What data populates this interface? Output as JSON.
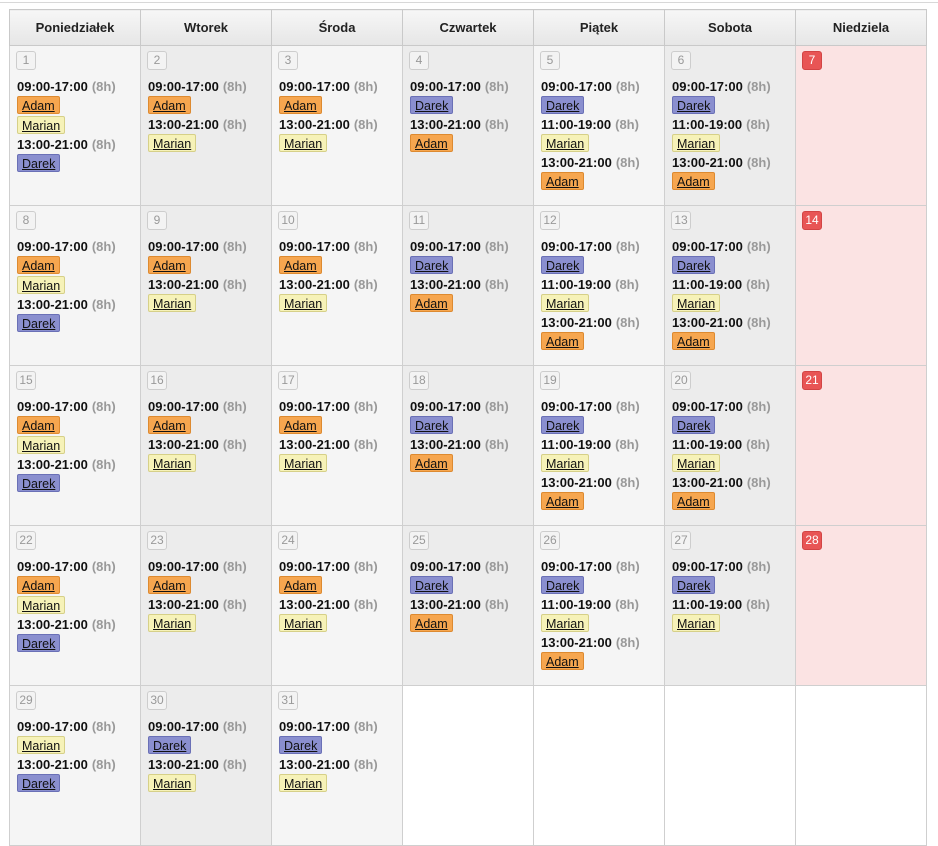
{
  "weekdays": [
    "Poniedziałek",
    "Wtorek",
    "Środa",
    "Czwartek",
    "Piątek",
    "Sobota",
    "Niedziela"
  ],
  "people": {
    "adam": "Adam",
    "marian": "Marian",
    "darek": "Darek"
  },
  "colors": {
    "adam": "#f6a64f",
    "marian": "#f6f2b8",
    "darek": "#8a8fcf",
    "sunday": "#e85555"
  },
  "weeks": [
    [
      {
        "day": "1",
        "shifts": [
          {
            "time": "09:00-17:00",
            "dur": "(8h)",
            "people": [
              "adam",
              "marian"
            ]
          },
          {
            "time": "13:00-21:00",
            "dur": "(8h)",
            "people": [
              "darek"
            ]
          }
        ]
      },
      {
        "day": "2",
        "shifts": [
          {
            "time": "09:00-17:00",
            "dur": "(8h)",
            "people": [
              "adam"
            ]
          },
          {
            "time": "13:00-21:00",
            "dur": "(8h)",
            "people": [
              "marian"
            ]
          }
        ]
      },
      {
        "day": "3",
        "shifts": [
          {
            "time": "09:00-17:00",
            "dur": "(8h)",
            "people": [
              "adam"
            ]
          },
          {
            "time": "13:00-21:00",
            "dur": "(8h)",
            "people": [
              "marian"
            ]
          }
        ]
      },
      {
        "day": "4",
        "shifts": [
          {
            "time": "09:00-17:00",
            "dur": "(8h)",
            "people": [
              "darek"
            ]
          },
          {
            "time": "13:00-21:00",
            "dur": "(8h)",
            "people": [
              "adam"
            ]
          }
        ]
      },
      {
        "day": "5",
        "shifts": [
          {
            "time": "09:00-17:00",
            "dur": "(8h)",
            "people": [
              "darek"
            ]
          },
          {
            "time": "11:00-19:00",
            "dur": "(8h)",
            "people": [
              "marian"
            ]
          },
          {
            "time": "13:00-21:00",
            "dur": "(8h)",
            "people": [
              "adam"
            ]
          }
        ]
      },
      {
        "day": "6",
        "shifts": [
          {
            "time": "09:00-17:00",
            "dur": "(8h)",
            "people": [
              "darek"
            ]
          },
          {
            "time": "11:00-19:00",
            "dur": "(8h)",
            "people": [
              "marian"
            ]
          },
          {
            "time": "13:00-21:00",
            "dur": "(8h)",
            "people": [
              "adam"
            ]
          }
        ]
      },
      {
        "day": "7",
        "shifts": []
      }
    ],
    [
      {
        "day": "8",
        "shifts": [
          {
            "time": "09:00-17:00",
            "dur": "(8h)",
            "people": [
              "adam",
              "marian"
            ]
          },
          {
            "time": "13:00-21:00",
            "dur": "(8h)",
            "people": [
              "darek"
            ]
          }
        ]
      },
      {
        "day": "9",
        "shifts": [
          {
            "time": "09:00-17:00",
            "dur": "(8h)",
            "people": [
              "adam"
            ]
          },
          {
            "time": "13:00-21:00",
            "dur": "(8h)",
            "people": [
              "marian"
            ]
          }
        ]
      },
      {
        "day": "10",
        "shifts": [
          {
            "time": "09:00-17:00",
            "dur": "(8h)",
            "people": [
              "adam"
            ]
          },
          {
            "time": "13:00-21:00",
            "dur": "(8h)",
            "people": [
              "marian"
            ]
          }
        ]
      },
      {
        "day": "11",
        "shifts": [
          {
            "time": "09:00-17:00",
            "dur": "(8h)",
            "people": [
              "darek"
            ]
          },
          {
            "time": "13:00-21:00",
            "dur": "(8h)",
            "people": [
              "adam"
            ]
          }
        ]
      },
      {
        "day": "12",
        "shifts": [
          {
            "time": "09:00-17:00",
            "dur": "(8h)",
            "people": [
              "darek"
            ]
          },
          {
            "time": "11:00-19:00",
            "dur": "(8h)",
            "people": [
              "marian"
            ]
          },
          {
            "time": "13:00-21:00",
            "dur": "(8h)",
            "people": [
              "adam"
            ]
          }
        ]
      },
      {
        "day": "13",
        "shifts": [
          {
            "time": "09:00-17:00",
            "dur": "(8h)",
            "people": [
              "darek"
            ]
          },
          {
            "time": "11:00-19:00",
            "dur": "(8h)",
            "people": [
              "marian"
            ]
          },
          {
            "time": "13:00-21:00",
            "dur": "(8h)",
            "people": [
              "adam"
            ]
          }
        ]
      },
      {
        "day": "14",
        "shifts": []
      }
    ],
    [
      {
        "day": "15",
        "shifts": [
          {
            "time": "09:00-17:00",
            "dur": "(8h)",
            "people": [
              "adam",
              "marian"
            ]
          },
          {
            "time": "13:00-21:00",
            "dur": "(8h)",
            "people": [
              "darek"
            ]
          }
        ]
      },
      {
        "day": "16",
        "shifts": [
          {
            "time": "09:00-17:00",
            "dur": "(8h)",
            "people": [
              "adam"
            ]
          },
          {
            "time": "13:00-21:00",
            "dur": "(8h)",
            "people": [
              "marian"
            ]
          }
        ]
      },
      {
        "day": "17",
        "shifts": [
          {
            "time": "09:00-17:00",
            "dur": "(8h)",
            "people": [
              "adam"
            ]
          },
          {
            "time": "13:00-21:00",
            "dur": "(8h)",
            "people": [
              "marian"
            ]
          }
        ]
      },
      {
        "day": "18",
        "shifts": [
          {
            "time": "09:00-17:00",
            "dur": "(8h)",
            "people": [
              "darek"
            ]
          },
          {
            "time": "13:00-21:00",
            "dur": "(8h)",
            "people": [
              "adam"
            ]
          }
        ]
      },
      {
        "day": "19",
        "shifts": [
          {
            "time": "09:00-17:00",
            "dur": "(8h)",
            "people": [
              "darek"
            ]
          },
          {
            "time": "11:00-19:00",
            "dur": "(8h)",
            "people": [
              "marian"
            ]
          },
          {
            "time": "13:00-21:00",
            "dur": "(8h)",
            "people": [
              "adam"
            ]
          }
        ]
      },
      {
        "day": "20",
        "shifts": [
          {
            "time": "09:00-17:00",
            "dur": "(8h)",
            "people": [
              "darek"
            ]
          },
          {
            "time": "11:00-19:00",
            "dur": "(8h)",
            "people": [
              "marian"
            ]
          },
          {
            "time": "13:00-21:00",
            "dur": "(8h)",
            "people": [
              "adam"
            ]
          }
        ]
      },
      {
        "day": "21",
        "shifts": []
      }
    ],
    [
      {
        "day": "22",
        "shifts": [
          {
            "time": "09:00-17:00",
            "dur": "(8h)",
            "people": [
              "adam",
              "marian"
            ]
          },
          {
            "time": "13:00-21:00",
            "dur": "(8h)",
            "people": [
              "darek"
            ]
          }
        ]
      },
      {
        "day": "23",
        "shifts": [
          {
            "time": "09:00-17:00",
            "dur": "(8h)",
            "people": [
              "adam"
            ]
          },
          {
            "time": "13:00-21:00",
            "dur": "(8h)",
            "people": [
              "marian"
            ]
          }
        ]
      },
      {
        "day": "24",
        "shifts": [
          {
            "time": "09:00-17:00",
            "dur": "(8h)",
            "people": [
              "adam"
            ]
          },
          {
            "time": "13:00-21:00",
            "dur": "(8h)",
            "people": [
              "marian"
            ]
          }
        ]
      },
      {
        "day": "25",
        "shifts": [
          {
            "time": "09:00-17:00",
            "dur": "(8h)",
            "people": [
              "darek"
            ]
          },
          {
            "time": "13:00-21:00",
            "dur": "(8h)",
            "people": [
              "adam"
            ]
          }
        ]
      },
      {
        "day": "26",
        "shifts": [
          {
            "time": "09:00-17:00",
            "dur": "(8h)",
            "people": [
              "darek"
            ]
          },
          {
            "time": "11:00-19:00",
            "dur": "(8h)",
            "people": [
              "marian"
            ]
          },
          {
            "time": "13:00-21:00",
            "dur": "(8h)",
            "people": [
              "adam"
            ]
          }
        ]
      },
      {
        "day": "27",
        "shifts": [
          {
            "time": "09:00-17:00",
            "dur": "(8h)",
            "people": [
              "darek"
            ]
          },
          {
            "time": "11:00-19:00",
            "dur": "(8h)",
            "people": [
              "marian"
            ]
          }
        ]
      },
      {
        "day": "28",
        "shifts": []
      }
    ],
    [
      {
        "day": "29",
        "shifts": [
          {
            "time": "09:00-17:00",
            "dur": "(8h)",
            "people": [
              "marian"
            ]
          },
          {
            "time": "13:00-21:00",
            "dur": "(8h)",
            "people": [
              "darek"
            ]
          }
        ]
      },
      {
        "day": "30",
        "shifts": [
          {
            "time": "09:00-17:00",
            "dur": "(8h)",
            "people": [
              "darek"
            ]
          },
          {
            "time": "13:00-21:00",
            "dur": "(8h)",
            "people": [
              "marian"
            ]
          }
        ]
      },
      {
        "day": "31",
        "shifts": [
          {
            "time": "09:00-17:00",
            "dur": "(8h)",
            "people": [
              "darek"
            ]
          },
          {
            "time": "13:00-21:00",
            "dur": "(8h)",
            "people": [
              "marian"
            ]
          }
        ]
      }
    ]
  ]
}
